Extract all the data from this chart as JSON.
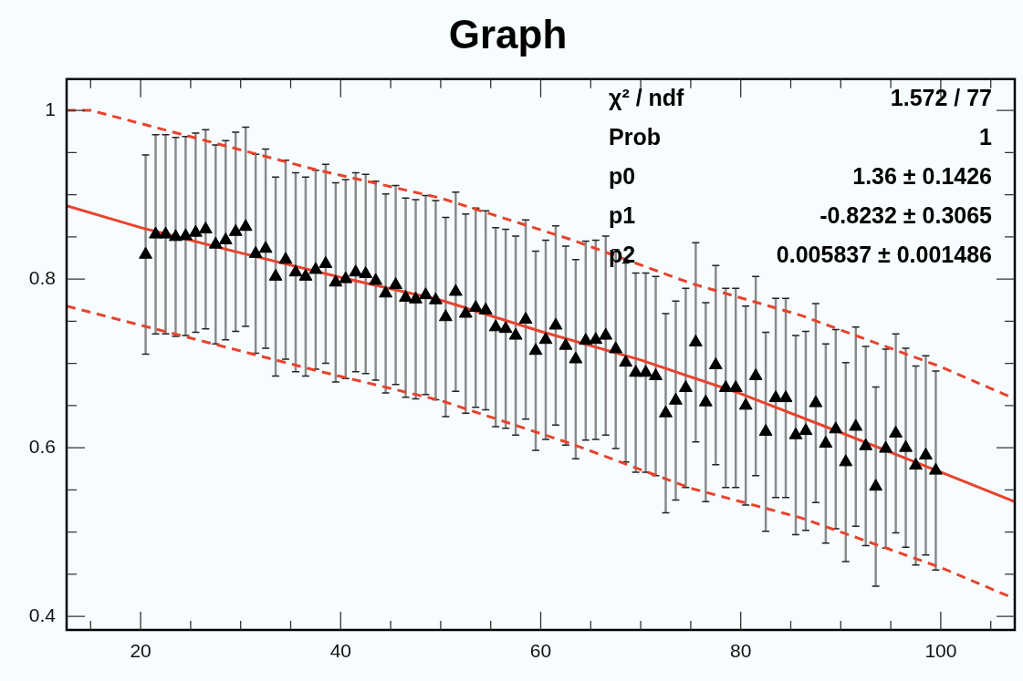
{
  "chart_data": {
    "type": "scatter",
    "title": "Graph",
    "xlim": [
      12.6,
      107.4
    ],
    "ylim": [
      0.384,
      1.037
    ],
    "xticks": [
      {
        "value": 15,
        "label": null
      },
      20,
      {
        "value": 25,
        "label": null
      },
      {
        "value": 30,
        "label": null
      },
      {
        "value": 35,
        "label": null
      },
      40,
      {
        "value": 45,
        "label": null
      },
      {
        "value": 50,
        "label": null
      },
      {
        "value": 55,
        "label": null
      },
      60,
      {
        "value": 65,
        "label": null
      },
      {
        "value": 70,
        "label": null
      },
      {
        "value": 75,
        "label": null
      },
      80,
      {
        "value": 85,
        "label": null
      },
      {
        "value": 90,
        "label": null
      },
      {
        "value": 95,
        "label": null
      },
      100,
      {
        "value": 105,
        "label": null
      }
    ],
    "yticks": [
      0.4,
      {
        "value": 0.45,
        "label": null
      },
      {
        "value": 0.5,
        "label": null
      },
      {
        "value": 0.55,
        "label": null
      },
      0.6,
      {
        "value": 0.65,
        "label": null
      },
      {
        "value": 0.7,
        "label": null
      },
      {
        "value": 0.75,
        "label": null
      },
      0.8,
      {
        "value": 0.85,
        "label": null
      },
      {
        "value": 0.9,
        "label": null
      },
      {
        "value": 0.95,
        "label": null
      },
      {
        "value": 1,
        "label": "1"
      }
    ],
    "annotations": [
      "χ² / ndf",
      "1.572 / 77",
      "Prob",
      "1",
      "p0",
      "1.36 ± 0.1426",
      "p1",
      "-0.8232 ± 0.3065",
      "p2",
      "0.005837 ± 0.001486"
    ],
    "series": [
      {
        "color": "#000000",
        "marker": "triangle",
        "x": [
          20.5,
          21.5,
          22.5,
          23.5,
          24.5,
          25.5,
          26.5,
          27.5,
          28.5,
          29.5,
          30.5,
          31.5,
          32.5,
          33.5,
          34.5,
          35.5,
          36.5,
          37.5,
          38.5,
          39.5,
          40.5,
          41.5,
          42.5,
          43.5,
          44.5,
          45.5,
          46.5,
          47.5,
          48.5,
          49.5,
          50.5,
          51.5,
          52.5,
          53.5,
          54.5,
          55.5,
          56.5,
          57.5,
          58.5,
          59.5,
          60.5,
          61.5,
          62.5,
          63.5,
          64.5,
          65.5,
          66.5,
          67.5,
          68.5,
          69.5,
          70.5,
          71.5,
          72.5,
          73.5,
          74.5,
          75.5,
          76.5,
          77.5,
          78.5,
          79.5,
          80.5,
          81.5,
          82.5,
          83.5,
          84.5,
          85.5,
          86.5,
          87.5,
          88.5,
          89.5,
          90.5,
          91.5,
          92.5,
          93.5,
          94.5,
          95.5,
          96.5,
          97.5,
          98.5,
          99.5
        ],
        "values": [
          0.829,
          0.853,
          0.853,
          0.85,
          0.851,
          0.855,
          0.859,
          0.841,
          0.846,
          0.856,
          0.862,
          0.83,
          0.836,
          0.803,
          0.823,
          0.808,
          0.803,
          0.811,
          0.818,
          0.796,
          0.8,
          0.808,
          0.806,
          0.798,
          0.783,
          0.793,
          0.778,
          0.776,
          0.781,
          0.775,
          0.755,
          0.785,
          0.759,
          0.766,
          0.763,
          0.743,
          0.741,
          0.733,
          0.752,
          0.715,
          0.728,
          0.745,
          0.721,
          0.705,
          0.727,
          0.728,
          0.733,
          0.717,
          0.701,
          0.689,
          0.689,
          0.685,
          0.641,
          0.656,
          0.671,
          0.725,
          0.654,
          0.698,
          0.671,
          0.671,
          0.65,
          0.685,
          0.619,
          0.659,
          0.659,
          0.615,
          0.62,
          0.653,
          0.605,
          0.622,
          0.583,
          0.625,
          0.602,
          0.554,
          0.599,
          0.617,
          0.6,
          0.579,
          0.591,
          0.573
        ],
        "errors": [
          0.118,
          0.118,
          0.118,
          0.118,
          0.118,
          0.118,
          0.118,
          0.118,
          0.118,
          0.118,
          0.118,
          0.118,
          0.118,
          0.118,
          0.118,
          0.118,
          0.118,
          0.118,
          0.118,
          0.118,
          0.118,
          0.118,
          0.118,
          0.118,
          0.118,
          0.118,
          0.118,
          0.118,
          0.118,
          0.118,
          0.118,
          0.118,
          0.118,
          0.118,
          0.118,
          0.118,
          0.118,
          0.118,
          0.118,
          0.118,
          0.118,
          0.118,
          0.118,
          0.118,
          0.118,
          0.118,
          0.118,
          0.118,
          0.118,
          0.118,
          0.118,
          0.118,
          0.118,
          0.118,
          0.118,
          0.118,
          0.118,
          0.118,
          0.118,
          0.118,
          0.118,
          0.118,
          0.118,
          0.118,
          0.118,
          0.118,
          0.118,
          0.118,
          0.118,
          0.118,
          0.118,
          0.118,
          0.118,
          0.118,
          0.118,
          0.118,
          0.118,
          0.118,
          0.118,
          0.118
        ]
      },
      {
        "type": "line",
        "color": "#e8432d",
        "marker": "none",
        "line_style": "solid",
        "x": [
          12.6,
          20,
          30,
          40,
          50,
          60,
          70,
          80,
          90,
          100,
          107.4
        ],
        "values": [
          0.887,
          0.861,
          0.831,
          0.802,
          0.775,
          0.738,
          0.704,
          0.664,
          0.618,
          0.571,
          0.536
        ]
      },
      {
        "type": "line",
        "color": "#e8432d",
        "marker": "none",
        "line_style": "dashed",
        "x": [
          12.6,
          15,
          37.4,
          50,
          63,
          75,
          86,
          100,
          107.4
        ],
        "values": [
          1.0,
          1.0,
          0.93,
          0.896,
          0.847,
          0.795,
          0.757,
          0.696,
          0.658
        ]
      },
      {
        "type": "line",
        "color": "#e8432d",
        "marker": "none",
        "line_style": "dashed",
        "x": [
          12.6,
          37.4,
          50,
          63,
          75,
          86,
          100,
          107.4
        ],
        "values": [
          0.768,
          0.692,
          0.656,
          0.605,
          0.552,
          0.517,
          0.458,
          0.421
        ]
      }
    ]
  }
}
